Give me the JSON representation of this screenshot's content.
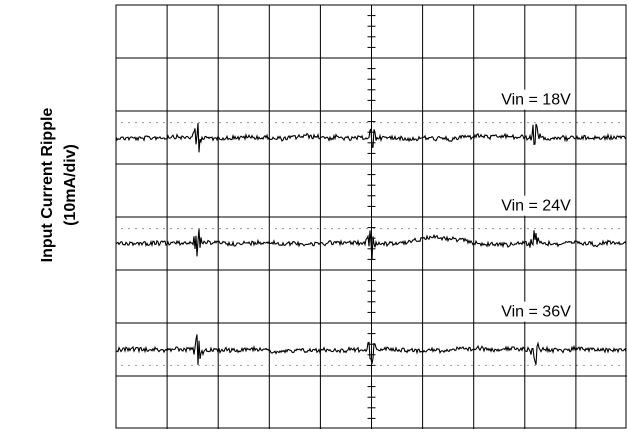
{
  "chart_data": {
    "type": "line",
    "ylabel_line1": "Input Current Ripple",
    "ylabel_line2": "(10mA/div)",
    "xlabel": "",
    "title": "",
    "grid": true,
    "divisions": {
      "x": 10,
      "y": 8
    },
    "series": [
      {
        "name": "Vin = 18V",
        "baseline_div": 2.5,
        "color": "#000000"
      },
      {
        "name": "Vin = 24V",
        "baseline_div": 4.5,
        "color": "#000000"
      },
      {
        "name": "Vin = 36V",
        "baseline_div": 6.5,
        "color": "#000000"
      }
    ],
    "burst_positions_div": [
      1.6,
      5.0,
      8.2
    ],
    "noise_amplitude_div": 0.08,
    "burst_amplitude_div": 0.35
  }
}
